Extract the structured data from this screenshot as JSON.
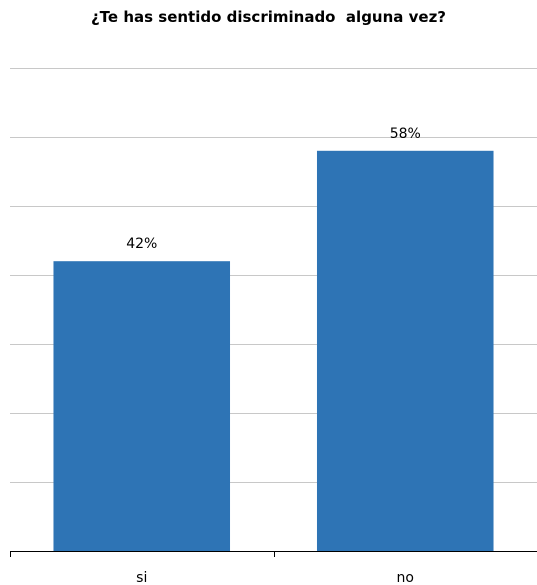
{
  "chart_data": {
    "type": "bar",
    "title": "¿Te has sentido discriminado  alguna vez?",
    "categories": [
      "si",
      "no"
    ],
    "values": [
      42,
      58
    ],
    "data_labels": [
      "42%",
      "58%"
    ],
    "ylim": [
      0,
      70
    ],
    "grid": true,
    "legend": "none",
    "colors": {
      "bar": "#2e74b5",
      "gridline": "#c8c8c8",
      "axis": "#000000"
    }
  }
}
